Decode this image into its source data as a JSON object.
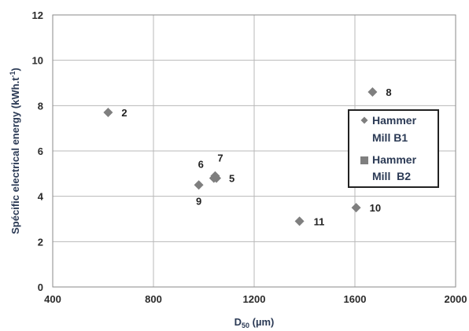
{
  "chart_data": {
    "type": "scatter",
    "xlabel_main": "D",
    "xlabel_sub": "50",
    "xlabel_unit": " (µm)",
    "ylabel": "Spécific electrical energy (kWh.t-1)",
    "xlim": [
      400,
      2000
    ],
    "ylim": [
      0,
      12
    ],
    "x_ticks": [
      400,
      800,
      1200,
      1600,
      2000
    ],
    "y_ticks": [
      0,
      2,
      4,
      6,
      8,
      10,
      12
    ],
    "grid": true,
    "legend_position": "right",
    "series": [
      {
        "name": "Hammer Mill B1",
        "legend_lines": [
          "Hammer",
          "Mill B1"
        ],
        "marker": "diamond",
        "color": "#7f7f7f",
        "points": [
          {
            "x": 620,
            "y": 7.7,
            "label": "2"
          },
          {
            "x": 1050,
            "y": 4.8,
            "label": "5"
          },
          {
            "x": 1040,
            "y": 4.8,
            "label": "6"
          },
          {
            "x": 1045,
            "y": 4.9,
            "label": "7"
          },
          {
            "x": 1670,
            "y": 8.6,
            "label": "8"
          },
          {
            "x": 980,
            "y": 4.5,
            "label": "9"
          },
          {
            "x": 1605,
            "y": 3.5,
            "label": "10"
          },
          {
            "x": 1380,
            "y": 2.9,
            "label": "11"
          }
        ]
      },
      {
        "name": "Hammer Mill B2",
        "legend_lines": [
          "Hammer",
          "Mill  B2"
        ],
        "marker": "square",
        "color": "#7f7f7f",
        "points": []
      }
    ]
  }
}
